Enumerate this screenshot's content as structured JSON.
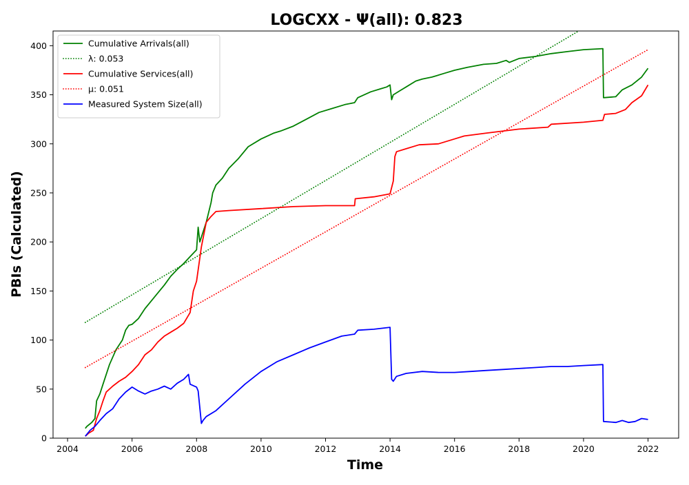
{
  "chart_data": {
    "type": "line",
    "title": "LOGCXX -  Ψ(all): 0.823",
    "xlabel": "Time",
    "ylabel": "PBIs (Calculated)",
    "xlim": [
      2003.55,
      2022.95
    ],
    "ylim": [
      0,
      415
    ],
    "xticks": [
      2004,
      2006,
      2008,
      2010,
      2012,
      2014,
      2016,
      2018,
      2020,
      2022
    ],
    "xtick_labels": [
      "2004",
      "2006",
      "2008",
      "2010",
      "2012",
      "2014",
      "2016",
      "2018",
      "2020",
      "2022"
    ],
    "yticks": [
      0,
      50,
      100,
      150,
      200,
      250,
      300,
      350,
      400
    ],
    "ytick_labels": [
      "0",
      "50",
      "100",
      "150",
      "200",
      "250",
      "300",
      "350",
      "400"
    ],
    "grid": false,
    "legend_position": "top-left",
    "series": [
      {
        "name": "Cumulative Arrivals(all)",
        "style": "solid",
        "color": "#008000",
        "x": [
          2004.55,
          2004.6,
          2004.75,
          2004.85,
          2004.9,
          2005.0,
          2005.1,
          2005.3,
          2005.5,
          2005.7,
          2005.8,
          2005.9,
          2006.0,
          2006.2,
          2006.4,
          2006.6,
          2006.8,
          2007.0,
          2007.2,
          2007.4,
          2007.6,
          2007.8,
          2008.0,
          2008.05,
          2008.1,
          2008.15,
          2008.3,
          2008.45,
          2008.5,
          2008.6,
          2008.8,
          2009.0,
          2009.3,
          2009.6,
          2010.0,
          2010.4,
          2010.6,
          2011.0,
          2011.4,
          2011.8,
          2012.2,
          2012.6,
          2012.9,
          2013.0,
          2013.4,
          2013.7,
          2013.9,
          2014.0,
          2014.05,
          2014.1,
          2014.3,
          2014.5,
          2014.8,
          2015.0,
          2015.3,
          2015.7,
          2016.0,
          2016.4,
          2016.9,
          2017.3,
          2017.6,
          2017.7,
          2018.0,
          2018.5,
          2019.0,
          2019.5,
          2020.0,
          2020.6,
          2020.62,
          2021.0,
          2021.2,
          2021.5,
          2021.8,
          2022.0
        ],
        "y": [
          10,
          12,
          16,
          20,
          38,
          45,
          55,
          75,
          90,
          100,
          110,
          115,
          116,
          122,
          132,
          140,
          148,
          156,
          165,
          172,
          178,
          185,
          192,
          215,
          200,
          205,
          220,
          240,
          250,
          258,
          265,
          275,
          285,
          297,
          305,
          311,
          313,
          318,
          325,
          332,
          336,
          340,
          342,
          347,
          353,
          356,
          358,
          360,
          345,
          350,
          354,
          358,
          364,
          366,
          368,
          372,
          375,
          378,
          381,
          382,
          385,
          383,
          387,
          389,
          392,
          394,
          396,
          397,
          347,
          348,
          355,
          360,
          368,
          377
        ]
      },
      {
        "name": "λ: 0.053",
        "style": "dotted",
        "color": "#008000",
        "x": [
          2004.55,
          2019.85
        ],
        "y": [
          118,
          415
        ]
      },
      {
        "name": "Cumulative Services(all)",
        "style": "solid",
        "color": "#ff0000",
        "x": [
          2004.55,
          2004.65,
          2004.8,
          2004.9,
          2005.0,
          2005.1,
          2005.2,
          2005.4,
          2005.6,
          2005.8,
          2006.0,
          2006.2,
          2006.4,
          2006.6,
          2006.8,
          2007.0,
          2007.2,
          2007.4,
          2007.6,
          2007.8,
          2007.9,
          2008.0,
          2008.15,
          2008.3,
          2008.45,
          2008.6,
          2009.0,
          2010.0,
          2011.0,
          2012.0,
          2012.9,
          2012.92,
          2013.5,
          2014.0,
          2014.1,
          2014.15,
          2014.2,
          2014.5,
          2014.9,
          2015.5,
          2016.0,
          2016.3,
          2017.0,
          2018.0,
          2018.9,
          2019.0,
          2020.0,
          2020.6,
          2020.65,
          2021.0,
          2021.3,
          2021.5,
          2021.8,
          2022.0
        ],
        "y": [
          2,
          5,
          8,
          20,
          28,
          38,
          47,
          53,
          58,
          62,
          68,
          75,
          85,
          90,
          98,
          104,
          108,
          112,
          117,
          128,
          150,
          160,
          195,
          220,
          226,
          231,
          232,
          234,
          236,
          237,
          237,
          244,
          246,
          249,
          262,
          287,
          292,
          295,
          299,
          300,
          305,
          308,
          311,
          315,
          317,
          320,
          322,
          324,
          330,
          331,
          335,
          342,
          349,
          360
        ]
      },
      {
        "name": "μ: 0.051",
        "style": "dotted",
        "color": "#ff0000",
        "x": [
          2004.55,
          2022.0
        ],
        "y": [
          72,
          396
        ]
      },
      {
        "name": "Measured System Size(all)",
        "style": "solid",
        "color": "#0000ff",
        "x": [
          2004.55,
          2004.7,
          2004.85,
          2005.0,
          2005.2,
          2005.4,
          2005.6,
          2005.8,
          2006.0,
          2006.2,
          2006.4,
          2006.6,
          2006.8,
          2007.0,
          2007.2,
          2007.4,
          2007.6,
          2007.75,
          2007.8,
          2008.0,
          2008.05,
          2008.15,
          2008.2,
          2008.3,
          2008.6,
          2009.0,
          2009.5,
          2010.0,
          2010.5,
          2011.0,
          2011.5,
          2012.0,
          2012.5,
          2012.9,
          2013.0,
          2013.5,
          2014.0,
          2014.05,
          2014.1,
          2014.2,
          2014.5,
          2015.0,
          2015.5,
          2016.0,
          2016.5,
          2017.0,
          2017.5,
          2018.0,
          2018.5,
          2019.0,
          2019.5,
          2020.0,
          2020.6,
          2020.62,
          2021.0,
          2021.2,
          2021.4,
          2021.6,
          2021.8,
          2022.0
        ],
        "y": [
          2,
          8,
          12,
          18,
          25,
          30,
          40,
          47,
          52,
          48,
          45,
          48,
          50,
          53,
          50,
          56,
          60,
          65,
          55,
          52,
          48,
          15,
          18,
          22,
          28,
          40,
          55,
          68,
          78,
          85,
          92,
          98,
          104,
          106,
          110,
          111,
          113,
          60,
          58,
          63,
          66,
          68,
          67,
          67,
          68,
          69,
          70,
          71,
          72,
          73,
          73,
          74,
          75,
          17,
          16,
          18,
          16,
          17,
          20,
          19
        ]
      }
    ]
  }
}
